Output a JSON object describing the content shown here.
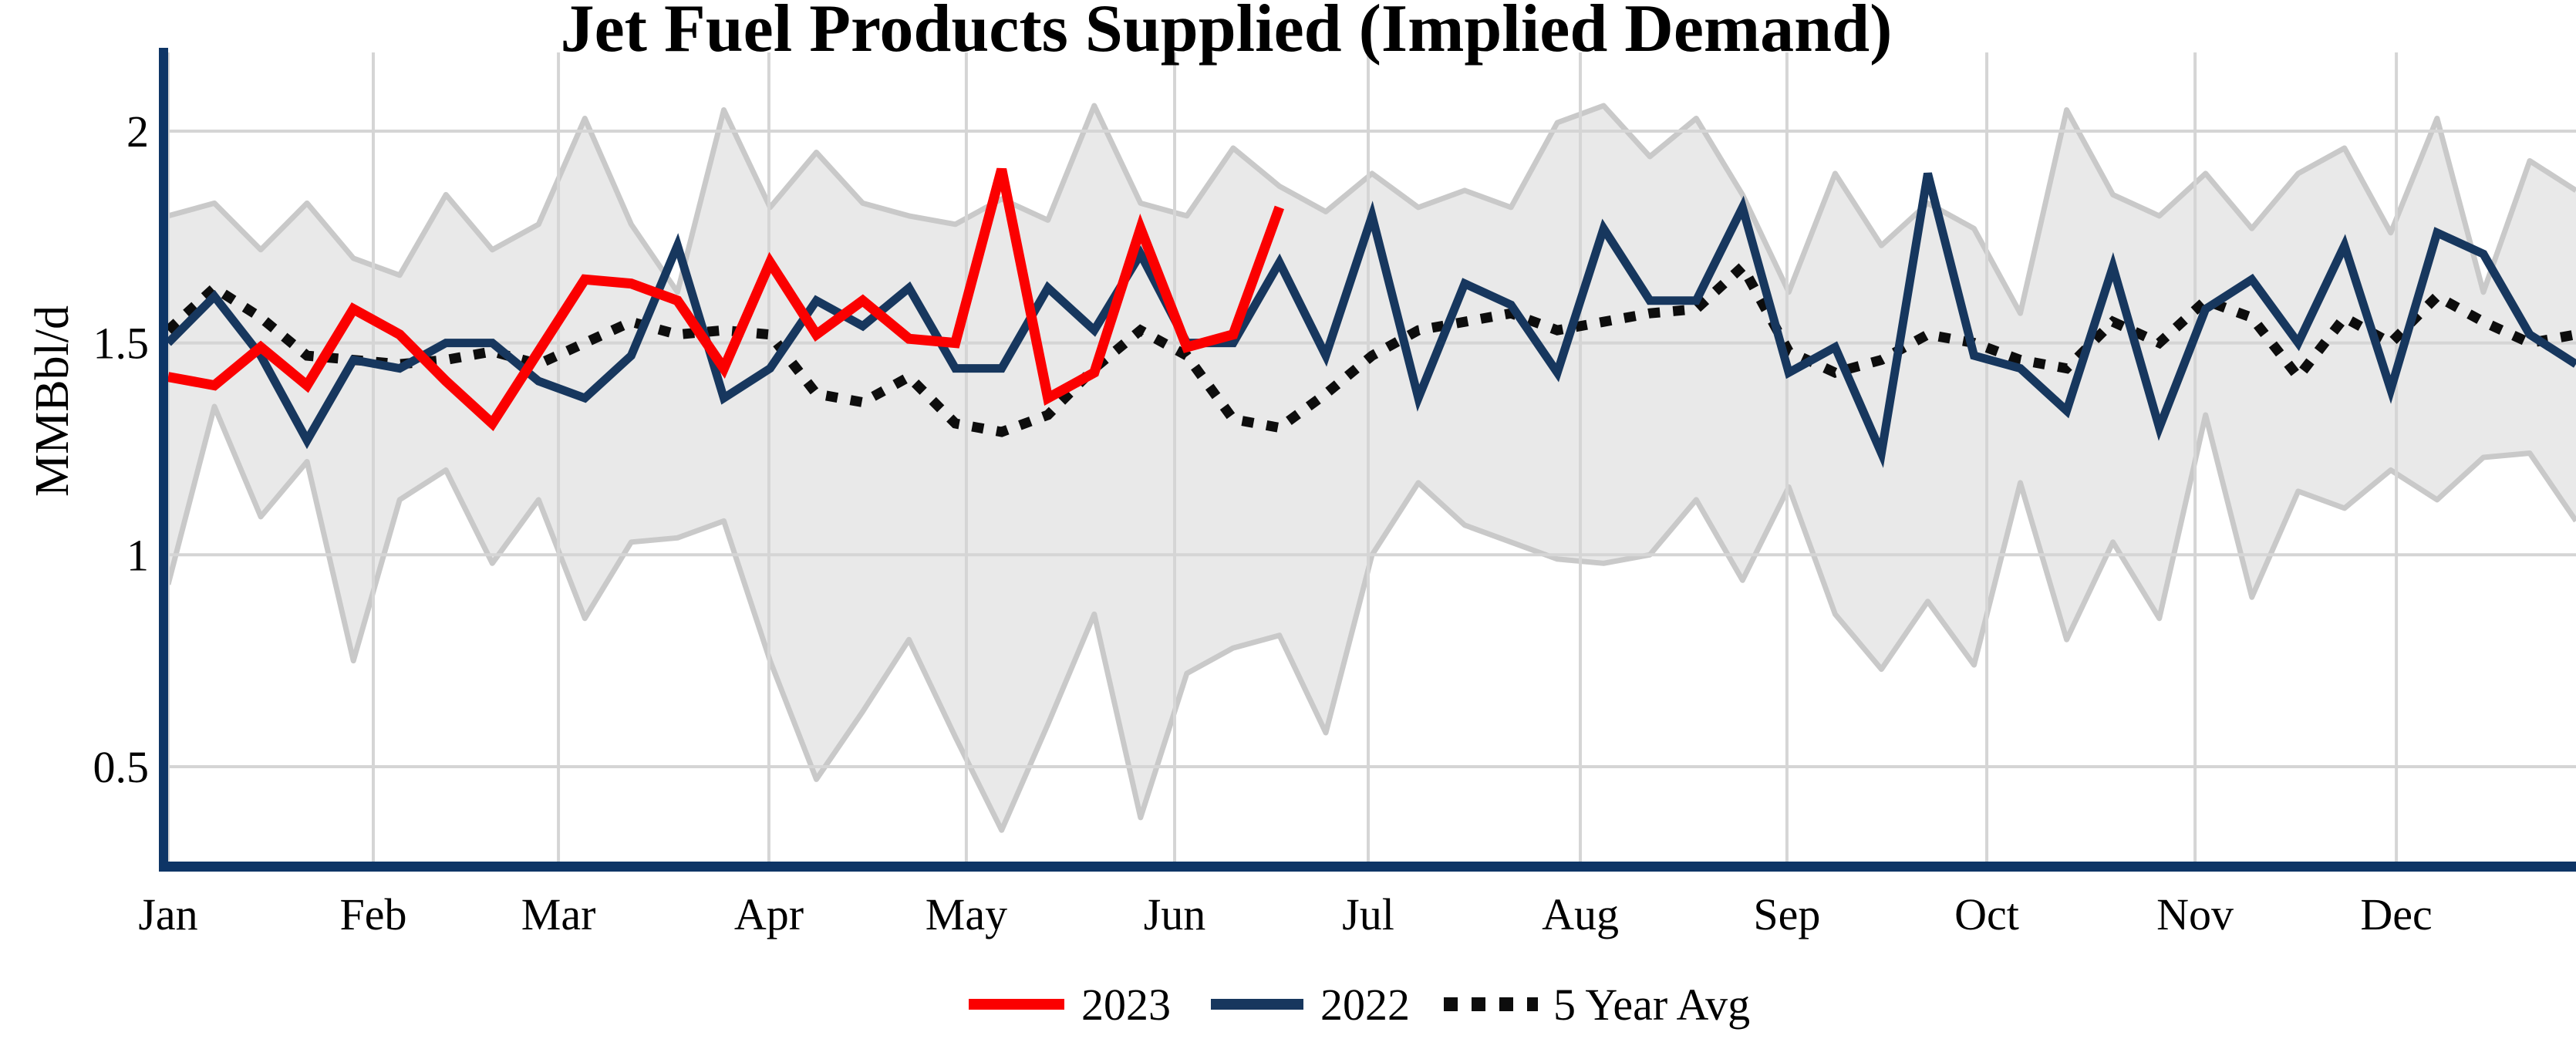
{
  "title": "Jet Fuel Products Supplied (Implied Demand)",
  "y_axis": {
    "label": "MMBbl/d",
    "ticks": [
      "2",
      "1.5",
      "1",
      "0.5"
    ],
    "tick_values": [
      2,
      1.5,
      1,
      0.5
    ]
  },
  "x_axis": {
    "months": [
      "Jan",
      "Feb",
      "Mar",
      "Apr",
      "May",
      "Jun",
      "Jul",
      "Aug",
      "Sep",
      "Oct",
      "Nov",
      "Dec"
    ]
  },
  "legend": {
    "items": [
      {
        "label": "2023",
        "color": "#fb0000",
        "style": "solid"
      },
      {
        "label": "2022",
        "color": "#17375e",
        "style": "solid"
      },
      {
        "label": "5 Year Avg",
        "color": "#0d0d0d",
        "style": "dotted"
      }
    ]
  },
  "colors": {
    "red_2023": "#fb0000",
    "navy_2022": "#17375e",
    "avg_dotted": "#0d0d0d",
    "band_fill": "#e9e9e9",
    "band_edge": "#c9c9c9",
    "gridline": "#d5d5d5",
    "axis_spine": "#0e3566",
    "background": "#ffffff"
  },
  "chart_data": {
    "type": "line",
    "title": "Jet Fuel Products Supplied (Implied Demand)",
    "xlabel": "",
    "ylabel": "MMBbl/d",
    "x_unit": "weekly observations, Jan through Dec",
    "ylim": [
      0.26,
      2.19
    ],
    "y_gridlines": [
      2,
      1.5,
      1,
      0.5
    ],
    "grid": true,
    "legend_position": "bottom-center",
    "months": [
      "Jan",
      "Feb",
      "Mar",
      "Apr",
      "May",
      "Jun",
      "Jul",
      "Aug",
      "Sep",
      "Oct",
      "Nov",
      "Dec"
    ],
    "series": [
      {
        "name": "2023",
        "color": "#fb0000",
        "style": "solid",
        "values": [
          1.42,
          1.4,
          1.49,
          1.4,
          1.58,
          1.52,
          1.41,
          1.31,
          1.48,
          1.65,
          1.64,
          1.6,
          1.44,
          1.69,
          1.52,
          1.6,
          1.51,
          1.5,
          1.91,
          1.37,
          1.43,
          1.77,
          1.49,
          1.52,
          1.82
        ]
      },
      {
        "name": "2022",
        "color": "#17375e",
        "style": "solid",
        "values": [
          1.5,
          1.61,
          1.47,
          1.27,
          1.46,
          1.44,
          1.5,
          1.5,
          1.41,
          1.37,
          1.47,
          1.73,
          1.37,
          1.44,
          1.6,
          1.54,
          1.63,
          1.44,
          1.44,
          1.63,
          1.53,
          1.71,
          1.5,
          1.5,
          1.69,
          1.47,
          1.8,
          1.37,
          1.64,
          1.59,
          1.43,
          1.77,
          1.6,
          1.6,
          1.82,
          1.43,
          1.49,
          1.24,
          1.9,
          1.47,
          1.44,
          1.34,
          1.68,
          1.3,
          1.58,
          1.65,
          1.5,
          1.73,
          1.39,
          1.76,
          1.71,
          1.52,
          1.45
        ]
      },
      {
        "name": "5 Year Avg",
        "color": "#0d0d0d",
        "style": "dotted",
        "values": [
          1.53,
          1.63,
          1.56,
          1.47,
          1.46,
          1.45,
          1.46,
          1.48,
          1.45,
          1.5,
          1.55,
          1.52,
          1.53,
          1.52,
          1.38,
          1.36,
          1.42,
          1.31,
          1.29,
          1.33,
          1.44,
          1.53,
          1.47,
          1.32,
          1.3,
          1.38,
          1.47,
          1.53,
          1.55,
          1.57,
          1.53,
          1.55,
          1.57,
          1.58,
          1.68,
          1.48,
          1.43,
          1.46,
          1.52,
          1.5,
          1.46,
          1.44,
          1.55,
          1.5,
          1.6,
          1.56,
          1.42,
          1.56,
          1.5,
          1.61,
          1.55,
          1.5,
          1.52
        ]
      }
    ],
    "band": {
      "name": "5 Year Range",
      "fill": "#e9e9e9",
      "edge": "#c9c9c9",
      "upper": [
        1.8,
        1.83,
        1.72,
        1.83,
        1.7,
        1.66,
        1.85,
        1.72,
        1.78,
        2.03,
        1.78,
        1.62,
        2.05,
        1.82,
        1.95,
        1.83,
        1.8,
        1.78,
        1.84,
        1.79,
        2.06,
        1.83,
        1.8,
        1.96,
        1.87,
        1.81,
        1.9,
        1.82,
        1.86,
        1.82,
        2.02,
        2.06,
        1.94,
        2.03,
        1.85,
        1.62,
        1.9,
        1.73,
        1.83,
        1.77,
        1.57,
        2.05,
        1.85,
        1.8,
        1.9,
        1.77,
        1.9,
        1.96,
        1.76,
        2.03,
        1.62,
        1.93,
        1.86
      ],
      "lower": [
        0.93,
        1.35,
        1.09,
        1.22,
        0.75,
        1.13,
        1.2,
        0.98,
        1.13,
        0.85,
        1.03,
        1.04,
        1.08,
        0.75,
        0.47,
        0.63,
        0.8,
        0.57,
        0.35,
        0.6,
        0.86,
        0.38,
        0.72,
        0.78,
        0.81,
        0.58,
        1.0,
        1.17,
        1.07,
        1.03,
        0.99,
        0.98,
        1.0,
        1.13,
        0.94,
        1.16,
        0.86,
        0.73,
        0.89,
        0.74,
        1.17,
        0.8,
        1.03,
        0.85,
        1.33,
        0.9,
        1.15,
        1.11,
        1.2,
        1.13,
        1.23,
        1.24,
        1.08
      ]
    }
  }
}
